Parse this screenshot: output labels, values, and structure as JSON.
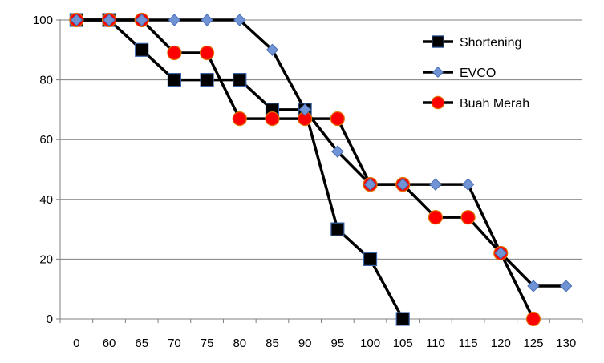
{
  "chart_data": {
    "type": "line",
    "categories": [
      "0",
      "60",
      "65",
      "70",
      "75",
      "80",
      "85",
      "90",
      "95",
      "100",
      "105",
      "110",
      "115",
      "120",
      "125",
      "130"
    ],
    "ylim": [
      0,
      100
    ],
    "yticks": [
      0,
      20,
      40,
      60,
      80,
      100
    ],
    "grid": "horizontal",
    "legend_position": "top-right",
    "series": [
      {
        "name": "Shortening",
        "marker": "square",
        "marker_color": "#000000",
        "marker_edge": "#3a63a8",
        "line_color": "#000000",
        "values": [
          100,
          100,
          90,
          80,
          80,
          80,
          70,
          70,
          30,
          20,
          0,
          null,
          null,
          null,
          null,
          null
        ]
      },
      {
        "name": "EVCO",
        "marker": "diamond",
        "marker_color": "#6f93d4",
        "marker_edge": "#4a6fb5",
        "line_color": "#000000",
        "values": [
          100,
          100,
          100,
          100,
          100,
          100,
          90,
          70,
          56,
          45,
          45,
          45,
          45,
          22,
          11,
          11
        ]
      },
      {
        "name": "Buah Merah",
        "marker": "circle",
        "marker_color": "#ff0000",
        "marker_edge": "#e07000",
        "line_color": "#000000",
        "values": [
          100,
          100,
          100,
          89,
          89,
          67,
          67,
          67,
          67,
          45,
          45,
          34,
          34,
          22,
          0,
          null
        ]
      }
    ]
  }
}
